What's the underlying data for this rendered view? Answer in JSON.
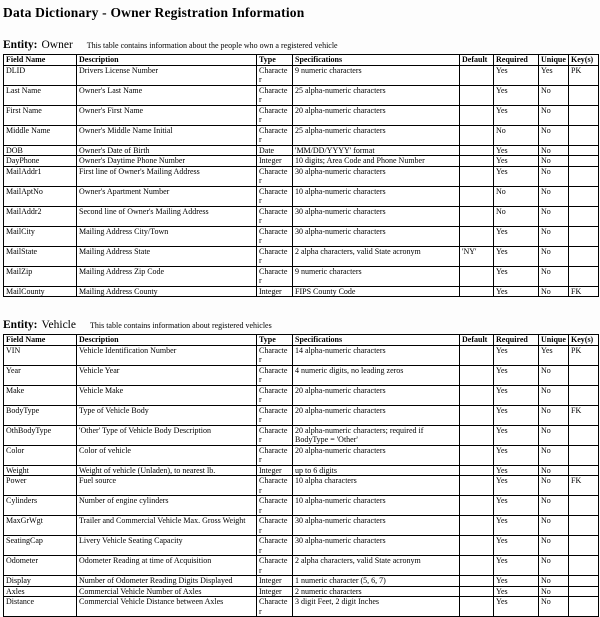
{
  "title": "Data Dictionary - Owner Registration Information",
  "columns": [
    "Field Name",
    "Description",
    "Type",
    "Specifications",
    "Default",
    "Required",
    "Unique",
    "Key(s)"
  ],
  "entities": [
    {
      "label": "Entity:",
      "name": "Owner",
      "description": "This table contains information about the people who own a registered vehicle",
      "rows": [
        [
          "DLID",
          "Drivers License Number",
          "Character",
          "9 numeric characters",
          "",
          "Yes",
          "Yes",
          "PK"
        ],
        [
          "Last Name",
          "Owner's Last Name",
          "Character",
          "25 alpha-numeric characters",
          "",
          "Yes",
          "No",
          ""
        ],
        [
          "First Name",
          "Owner's First Name",
          "Character",
          "20 alpha-numeric characters",
          "",
          "Yes",
          "No",
          ""
        ],
        [
          "Middle Name",
          "Owner's Middle Name Initial",
          "Character",
          "25 alpha-numeric characters",
          "",
          "No",
          "No",
          ""
        ],
        [
          "DOB",
          "Owner's Date of Birth",
          "Date",
          "'MM/DD/YYYY' format",
          "",
          "Yes",
          "No",
          ""
        ],
        [
          "DayPhone",
          "Owner's Daytime Phone Number",
          "Integer",
          "10 digits; Area Code and Phone Number",
          "",
          "Yes",
          "No",
          ""
        ],
        [
          "MailAddr1",
          "First line of Owner's Mailing Address",
          "Character",
          "30 alpha-numeric characters",
          "",
          "Yes",
          "No",
          ""
        ],
        [
          "MailAptNo",
          "Owner's Apartment Number",
          "Character",
          "10 alpha-numeric characters",
          "",
          "No",
          "No",
          ""
        ],
        [
          "MailAddr2",
          "Second line of Owner's Mailing Address",
          "Character",
          "30 alpha-numeric characters",
          "",
          "No",
          "No",
          ""
        ],
        [
          "MailCity",
          "Mailing Address City/Town",
          "Character",
          "30 alpha-numeric characters",
          "",
          "Yes",
          "No",
          ""
        ],
        [
          "MailState",
          "Mailing Address State",
          "Character",
          "2 alpha characters, valid State acronym",
          "'NY'",
          "Yes",
          "No",
          ""
        ],
        [
          "MailZip",
          "Mailing Address Zip Code",
          "Character",
          "9 numeric characters",
          "",
          "Yes",
          "No",
          ""
        ],
        [
          "MailCounty",
          "Mailing Address County",
          "Integer",
          "FIPS County Code",
          "",
          "Yes",
          "No",
          "FK"
        ]
      ]
    },
    {
      "label": "Entity:",
      "name": "Vehicle",
      "description": "This table contains information about registered vehicles",
      "rows": [
        [
          "VIN",
          "Vehicle Identification Number",
          "Character",
          "14 alpha-numeric characters",
          "",
          "Yes",
          "Yes",
          "PK"
        ],
        [
          "Year",
          "Vehicle Year",
          "Character",
          "4 numeric digits, no leading zeros",
          "",
          "Yes",
          "No",
          ""
        ],
        [
          "Make",
          "Vehicle Make",
          "Character",
          "20 alpha-numeric characters",
          "",
          "Yes",
          "No",
          ""
        ],
        [
          "BodyType",
          "Type of Vehicle Body",
          "Character",
          "20 alpha-numeric characters",
          "",
          "Yes",
          "No",
          "FK"
        ],
        [
          "OthBodyType",
          "'Other' Type of Vehicle Body Description",
          "Character",
          "20 alpha-numeric characters; required if BodyType = 'Other'",
          "",
          "Yes",
          "No",
          ""
        ],
        [
          "Color",
          "Color of vehicle",
          "Character",
          "20 alpha-numeric characters",
          "",
          "Yes",
          "No",
          ""
        ],
        [
          "Weight",
          "Weight of vehicle (Unladen), to nearest lb.",
          "Integer",
          "up to 6 digits",
          "",
          "Yes",
          "No",
          ""
        ],
        [
          "Power",
          "Fuel source",
          "Character",
          "10 alpha characters",
          "",
          "Yes",
          "No",
          "FK"
        ],
        [
          "Cylinders",
          "Number of engine cylinders",
          "Character",
          "10 alpha-numeric characters",
          "",
          "Yes",
          "No",
          ""
        ],
        [
          "MaxGrWgt",
          "Trailer and Commercial Vehicle Max. Gross Weight",
          "Character",
          "30 alpha-numeric characters",
          "",
          "Yes",
          "No",
          ""
        ],
        [
          "SeatingCap",
          "Livery Vehicle Seating Capacity",
          "Character",
          "30 alpha-numeric characters",
          "",
          "Yes",
          "No",
          ""
        ],
        [
          "Odometer",
          "Odometer Reading at time of Acquisition",
          "Character",
          "2 alpha characters, valid State acronym",
          "",
          "Yes",
          "No",
          ""
        ],
        [
          "Display",
          "Number of Odometer Reading Digits Displayed",
          "Integer",
          "1 numeric character (5, 6, 7)",
          "",
          "Yes",
          "No",
          ""
        ],
        [
          "Axles",
          "Commercial Vehicle Number of Axles",
          "Integer",
          "2 numeric characters",
          "",
          "Yes",
          "No",
          ""
        ],
        [
          "Distance",
          "Commercial Vehicle Distance between Axles",
          "Character",
          "3 digit Feet, 2 digit Inches",
          "",
          "Yes",
          "No",
          ""
        ]
      ]
    }
  ]
}
